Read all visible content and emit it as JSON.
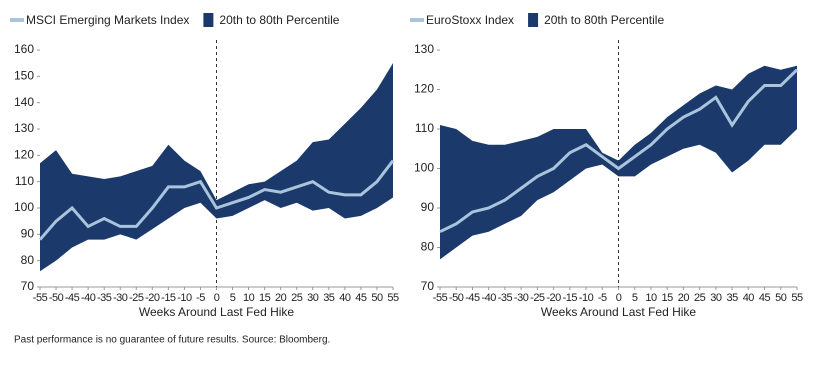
{
  "chart_data": [
    {
      "type": "band-line",
      "x_label": "Weeks Around Last Fed Hike",
      "x": [
        -55,
        -50,
        -45,
        -40,
        -35,
        -30,
        -25,
        -20,
        -15,
        -10,
        -5,
        0,
        5,
        10,
        15,
        20,
        25,
        30,
        35,
        40,
        45,
        50,
        55
      ],
      "series": [
        {
          "name": "MSCI Emerging Markets Index",
          "color": "#a9c4dc",
          "values": [
            88,
            95,
            100,
            93,
            96,
            93,
            93,
            100,
            108,
            108,
            110,
            100,
            102,
            104,
            107,
            106,
            108,
            110,
            106,
            105,
            105,
            110,
            118
          ]
        },
        {
          "name": "20th to 80th Percentile",
          "color": "#1b3a6b",
          "upper": [
            117,
            122,
            113,
            112,
            111,
            112,
            114,
            116,
            124,
            118,
            114,
            103,
            106,
            109,
            110,
            114,
            118,
            125,
            126,
            132,
            138,
            145,
            155
          ],
          "lower": [
            76,
            80,
            85,
            88,
            88,
            90,
            88,
            92,
            96,
            100,
            102,
            96,
            97,
            100,
            103,
            100,
            102,
            99,
            100,
            96,
            97,
            100,
            104
          ]
        }
      ],
      "xlim": [
        -55,
        55
      ],
      "xticks": [
        -55,
        -50,
        -45,
        -40,
        -35,
        -30,
        -25,
        -20,
        -15,
        -10,
        -5,
        0,
        5,
        10,
        15,
        20,
        25,
        30,
        35,
        40,
        45,
        50,
        55
      ],
      "ylim": [
        70,
        160
      ],
      "yticks": [
        70,
        80,
        90,
        100,
        110,
        120,
        130,
        140,
        150,
        160
      ],
      "vline": 0
    },
    {
      "type": "band-line",
      "x_label": "Weeks Around Last Fed Hike",
      "x": [
        -55,
        -50,
        -45,
        -40,
        -35,
        -30,
        -25,
        -20,
        -15,
        -10,
        -5,
        0,
        5,
        10,
        15,
        20,
        25,
        30,
        35,
        40,
        45,
        50,
        55
      ],
      "series": [
        {
          "name": "EuroStoxx Index",
          "color": "#a9c4dc",
          "values": [
            84,
            86,
            89,
            90,
            92,
            95,
            98,
            100,
            104,
            106,
            103,
            100,
            103,
            106,
            110,
            113,
            115,
            118,
            111,
            117,
            121,
            121,
            125
          ]
        },
        {
          "name": "20th to 80th Percentile",
          "color": "#1b3a6b",
          "upper": [
            111,
            110,
            107,
            106,
            106,
            107,
            108,
            110,
            110,
            110,
            104,
            102,
            106,
            109,
            113,
            116,
            119,
            121,
            120,
            124,
            126,
            125,
            126
          ],
          "lower": [
            77,
            80,
            83,
            84,
            86,
            88,
            92,
            94,
            97,
            100,
            101,
            98,
            98,
            101,
            103,
            105,
            106,
            104,
            99,
            102,
            106,
            106,
            110
          ]
        }
      ],
      "xlim": [
        -55,
        55
      ],
      "xticks": [
        -55,
        -50,
        -45,
        -40,
        -35,
        -30,
        -25,
        -20,
        -15,
        -10,
        -5,
        0,
        5,
        10,
        15,
        20,
        25,
        30,
        35,
        40,
        45,
        50,
        55
      ],
      "ylim": [
        70,
        130
      ],
      "yticks": [
        70,
        80,
        90,
        100,
        110,
        120,
        130
      ],
      "vline": 0
    }
  ],
  "footnote": "Past performance is no guarantee of future results. Source: Bloomberg."
}
